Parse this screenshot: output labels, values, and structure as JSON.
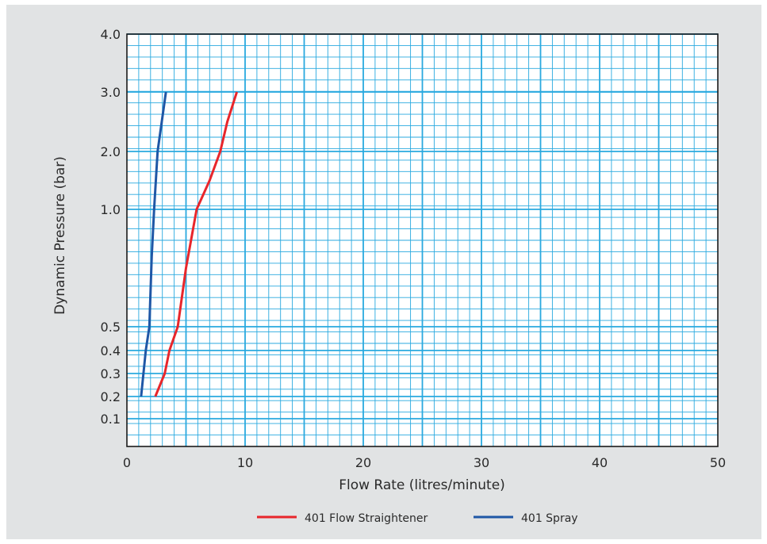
{
  "chart_data": {
    "type": "line",
    "title": "",
    "xlabel": "Flow Rate (litres/minute)",
    "ylabel": "Dynamic Pressure (bar)",
    "xlim": [
      0,
      50
    ],
    "x_ticks": [
      0,
      10,
      20,
      30,
      40,
      50
    ],
    "y_ticks": [
      {
        "value": 0.1,
        "label": "0.1"
      },
      {
        "value": 0.2,
        "label": "0.2"
      },
      {
        "value": 0.3,
        "label": "0.3"
      },
      {
        "value": 0.4,
        "label": "0.4"
      },
      {
        "value": 0.5,
        "label": "0.5"
      },
      {
        "value": 1.0,
        "label": "1.0"
      },
      {
        "value": 2.0,
        "label": "2.0"
      },
      {
        "value": 3.0,
        "label": "3.0"
      },
      {
        "value": 4.0,
        "label": "4.0"
      }
    ],
    "grid": true,
    "legend_position": "bottom",
    "background_color": "#e1e3e4",
    "plot_background_color": "#ffffff",
    "grid_color": "#29a9df",
    "series": [
      {
        "name": "401 Flow Straightener",
        "color": "#e8262b",
        "points": [
          {
            "x": 2.4,
            "y": 0.2
          },
          {
            "x": 3.2,
            "y": 0.3
          },
          {
            "x": 3.6,
            "y": 0.4
          },
          {
            "x": 4.3,
            "y": 0.5
          },
          {
            "x": 5.0,
            "y": 0.75
          },
          {
            "x": 5.9,
            "y": 1.0
          },
          {
            "x": 7.0,
            "y": 1.5
          },
          {
            "x": 7.9,
            "y": 2.0
          },
          {
            "x": 8.5,
            "y": 2.5
          },
          {
            "x": 9.3,
            "y": 3.0
          }
        ]
      },
      {
        "name": "401 Spray",
        "color": "#1f57a6",
        "points": [
          {
            "x": 1.2,
            "y": 0.2
          },
          {
            "x": 1.6,
            "y": 0.4
          },
          {
            "x": 1.9,
            "y": 0.5
          },
          {
            "x": 2.1,
            "y": 0.8
          },
          {
            "x": 2.3,
            "y": 1.0
          },
          {
            "x": 2.6,
            "y": 2.0
          },
          {
            "x": 3.3,
            "y": 3.0
          }
        ]
      }
    ]
  }
}
